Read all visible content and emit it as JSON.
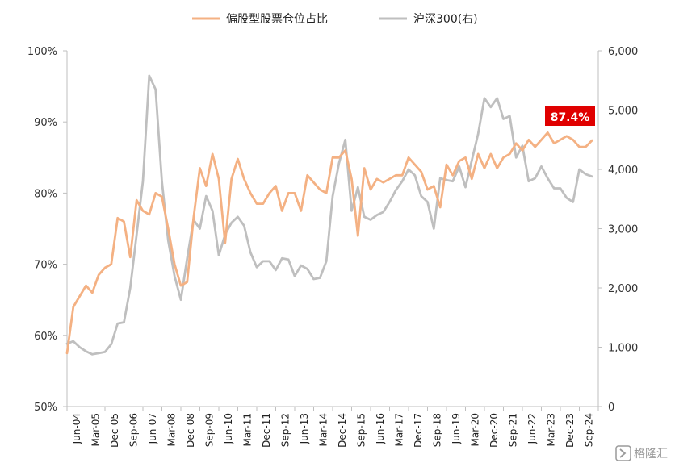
{
  "chart_data": {
    "type": "line",
    "x_tick_labels": [
      "Jun-04",
      "Mar-05",
      "Dec-05",
      "Sep-06",
      "Jun-07",
      "Mar-08",
      "Dec-08",
      "Sep-09",
      "Jun-10",
      "Mar-11",
      "Dec-11",
      "Sep-12",
      "Jun-13",
      "Mar-14",
      "Dec-14",
      "Sep-15",
      "Jun-16",
      "Mar-17",
      "Dec-17",
      "Sep-18",
      "Jun-19",
      "Mar-20",
      "Dec-20",
      "Sep-21",
      "Jun-22",
      "Mar-23",
      "Dec-23",
      "Sep-24"
    ],
    "y_left": {
      "ticks": [
        "50%",
        "60%",
        "70%",
        "80%",
        "90%",
        "100%"
      ],
      "lim": [
        50,
        100
      ]
    },
    "y_right": {
      "ticks": [
        "0",
        "1,000",
        "2,000",
        "3,000",
        "4,000",
        "5,000",
        "6,000"
      ],
      "lim": [
        0,
        6000
      ]
    },
    "legend": {
      "position": "top-center"
    },
    "series": [
      {
        "name": "偏股型股票仓位占比",
        "axis": "left",
        "color": "#f4b183",
        "x": [
          0,
          0.33,
          1,
          1.33,
          1.67,
          2,
          2.33,
          2.67,
          3,
          3.33,
          3.67,
          4,
          4.33,
          4.67,
          5,
          5.33,
          5.67,
          6,
          6.33,
          6.67,
          7,
          7.33,
          7.67,
          8,
          8.33,
          8.67,
          9,
          9.33,
          9.67,
          10,
          10.33,
          10.67,
          11,
          11.33,
          11.67,
          12,
          12.33,
          12.67,
          13,
          13.33,
          13.67,
          14,
          14.33,
          14.67,
          15,
          15.33,
          15.67,
          16,
          16.33,
          16.67,
          17,
          17.33,
          17.67,
          18,
          18.33,
          18.67,
          19,
          19.33,
          19.67,
          20,
          20.33,
          20.67,
          21,
          21.33,
          21.67,
          22,
          22.33,
          22.67,
          23,
          23.33,
          23.67,
          24,
          24.33,
          24.67,
          25,
          25.33,
          25.67,
          26,
          26.33,
          26.67,
          27,
          27.33,
          27.67
        ],
        "values": [
          57.5,
          64,
          67,
          66,
          68.5,
          69.5,
          70,
          76.5,
          76,
          71,
          79,
          77.5,
          77,
          80,
          79.5,
          75,
          70,
          67,
          67.5,
          76.5,
          83.5,
          81,
          85.5,
          82,
          73,
          82,
          84.8,
          82,
          80,
          78.5,
          78.5,
          80,
          81,
          77.5,
          80,
          80,
          77.5,
          82.5,
          81.5,
          80.5,
          80,
          85,
          85,
          86,
          82,
          74,
          83.5,
          80.5,
          82,
          81.5,
          82,
          82.5,
          82.5,
          85,
          84,
          83,
          80.5,
          81,
          78,
          84,
          82.5,
          84.5,
          85,
          82,
          85.5,
          83.5,
          85.5,
          83.5,
          85,
          85.5,
          87,
          86,
          87.5,
          86.5,
          87.5,
          88.5,
          87,
          87.5,
          88,
          87.5,
          86.5,
          86.5,
          87.4
        ]
      },
      {
        "name": "沪深300(右)",
        "axis": "right",
        "color": "#bfbfbf",
        "x": [
          0,
          0.33,
          0.67,
          1,
          1.33,
          1.67,
          2,
          2.33,
          2.67,
          3,
          3.33,
          3.67,
          4,
          4.33,
          4.67,
          5,
          5.33,
          5.67,
          6,
          6.33,
          6.67,
          7,
          7.33,
          7.67,
          8,
          8.33,
          8.67,
          9,
          9.33,
          9.67,
          10,
          10.33,
          10.67,
          11,
          11.33,
          11.67,
          12,
          12.33,
          12.67,
          13,
          13.33,
          13.67,
          14,
          14.33,
          14.67,
          15,
          15.33,
          15.67,
          16,
          16.33,
          16.67,
          17,
          17.33,
          17.67,
          18,
          18.33,
          18.67,
          19,
          19.33,
          19.67,
          20,
          20.33,
          20.67,
          21,
          21.33,
          21.67,
          22,
          22.33,
          22.67,
          23,
          23.33,
          23.67,
          24,
          24.33,
          24.67,
          25,
          25.33,
          25.67,
          26,
          26.33,
          26.67,
          27,
          27.33,
          27.67
        ],
        "values": [
          1060,
          1100,
          1000,
          930,
          880,
          900,
          920,
          1050,
          1400,
          1420,
          2000,
          2900,
          3800,
          5580,
          5350,
          3800,
          2800,
          2200,
          1800,
          2500,
          3150,
          3000,
          3550,
          3300,
          2550,
          2900,
          3100,
          3200,
          3050,
          2600,
          2350,
          2450,
          2450,
          2300,
          2500,
          2480,
          2200,
          2380,
          2320,
          2150,
          2170,
          2450,
          3550,
          4100,
          4500,
          3300,
          3700,
          3200,
          3150,
          3230,
          3280,
          3450,
          3650,
          3800,
          4000,
          3900,
          3550,
          3450,
          3000,
          3850,
          3820,
          3800,
          4050,
          3700,
          4150,
          4600,
          5200,
          5050,
          5200,
          4850,
          4900,
          4200,
          4400,
          3800,
          3850,
          4050,
          3850,
          3680,
          3680,
          3520,
          3450,
          4000,
          3920,
          3880
        ]
      }
    ],
    "annotation": {
      "text": "87.4%",
      "series": "偏股型股票仓位占比",
      "color": "#e00000"
    }
  },
  "watermark": {
    "icon": "glh-logo-icon",
    "text": "格隆汇"
  }
}
